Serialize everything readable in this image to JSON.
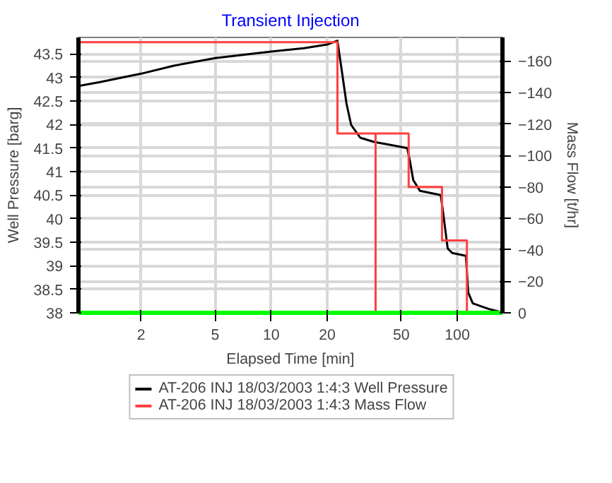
{
  "chart_data": {
    "type": "line",
    "title": "Transient Injection",
    "xlabel": "Elapsed Time [min]",
    "ylabel": "Well Pressure [barg]",
    "y2label": "Mass Flow [t/hr]",
    "log": "x",
    "grid": true,
    "legend": "bottom",
    "marker": "none",
    "line_style": "solid",
    "xlim": [
      0.92,
      175
    ],
    "xticks": [
      2,
      5,
      10,
      20,
      50,
      100
    ],
    "ylim": [
      38,
      43.85
    ],
    "yticks": [
      38,
      38.5,
      39,
      39.5,
      40,
      40.5,
      41,
      41.5,
      42,
      42.5,
      43,
      43.5
    ],
    "y2lim": [
      0,
      -175
    ],
    "y2ticks": [
      0,
      -20,
      -40,
      -60,
      -80,
      -100,
      -120,
      -140,
      -160
    ],
    "series": [
      {
        "name": "AT-206 INJ 18/03/2003 1:4:3 Well Pressure",
        "color": "#000000",
        "x": [
          0.92,
          1.2,
          1.5,
          2,
          3,
          5,
          7,
          10,
          15,
          20,
          22.7,
          24.0,
          25.4,
          26.9,
          30.1,
          35.7,
          44.9,
          53.8,
          55.7,
          58.0,
          63.1,
          81.5,
          83.9,
          88.8,
          93.9,
          111.3,
          114.6,
          121.2,
          148,
          170.6
        ],
        "values": [
          42.82,
          42.9,
          42.98,
          43.08,
          43.25,
          43.41,
          43.48,
          43.55,
          43.62,
          43.7,
          43.78,
          43.12,
          42.44,
          41.99,
          41.72,
          41.63,
          41.56,
          41.5,
          41.22,
          40.82,
          40.59,
          40.5,
          40.14,
          39.37,
          39.27,
          39.21,
          38.43,
          38.2,
          38.08,
          38.02
        ]
      },
      {
        "name": "AT-206 INJ 18/03/2003 1:4:3 Mass Flow",
        "color": "#ff4040",
        "axis": "y2",
        "x": [
          0.92,
          22.7,
          22.7,
          36.4,
          36.4,
          36.4,
          54.8,
          54.8,
          82.8,
          82.8,
          112.7,
          112.7,
          175
        ],
        "values": [
          -172,
          -172,
          -114,
          -114,
          0,
          -114,
          -114,
          -80,
          -80,
          -46,
          -46,
          0,
          0
        ]
      }
    ]
  }
}
